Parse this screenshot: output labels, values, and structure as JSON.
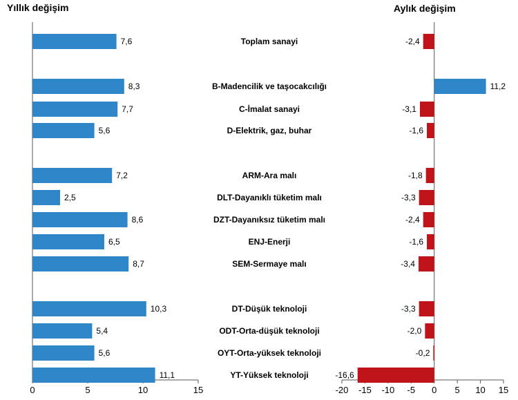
{
  "chart_data": [
    {
      "type": "bar",
      "orientation": "horizontal",
      "title": "Yıllık değişim",
      "categories": [
        "Toplam sanayi",
        "B-Madencilik ve taşocakcılığı",
        "C-İmalat sanayi",
        "D-Elektrik, gaz, buhar",
        "ARM-Ara malı",
        "DLT-Dayanıklı tüketim malı",
        "DZT-Dayanıksız tüketim malı",
        "ENJ-Enerji",
        "SEM-Sermaye malı",
        "DT-Düşük teknoloji",
        "ODT-Orta-düşük teknoloji",
        "OYT-Orta-yüksek teknoloji",
        "YT-Yüksek teknoloji"
      ],
      "values": [
        7.6,
        8.3,
        7.7,
        5.6,
        7.2,
        2.5,
        8.6,
        6.5,
        8.7,
        10.3,
        5.4,
        5.6,
        11.1
      ],
      "value_labels": [
        "7,6",
        "8,3",
        "7,7",
        "5,6",
        "7,2",
        "2,5",
        "8,6",
        "6,5",
        "8,7",
        "10,3",
        "5,4",
        "5,6",
        "11,1"
      ],
      "xlim": [
        0,
        15
      ],
      "ticks": [
        0,
        5,
        10,
        15
      ],
      "tick_labels": [
        "0",
        "5",
        "10",
        "15"
      ],
      "color": "#2e86c8",
      "grid": false
    },
    {
      "type": "bar",
      "orientation": "horizontal",
      "title": "Aylık değişim",
      "categories": [
        "Toplam sanayi",
        "B-Madencilik ve taşocakcılığı",
        "C-İmalat sanayi",
        "D-Elektrik, gaz, buhar",
        "ARM-Ara malı",
        "DLT-Dayanıklı tüketim malı",
        "DZT-Dayanıksız tüketim malı",
        "ENJ-Enerji",
        "SEM-Sermaye malı",
        "DT-Düşük teknoloji",
        "ODT-Orta-düşük teknoloji",
        "OYT-Orta-yüksek teknoloji",
        "YT-Yüksek teknoloji"
      ],
      "values": [
        -2.4,
        11.2,
        -3.1,
        -1.6,
        -1.8,
        -3.3,
        -2.4,
        -1.6,
        -3.4,
        -3.3,
        -2.0,
        -0.2,
        -16.6
      ],
      "value_labels": [
        "-2,4",
        "11,2",
        "-3,1",
        "-1,6",
        "-1,8",
        "-3,3",
        "-2,4",
        "-1,6",
        "-3,4",
        "-3,3",
        "-2,0",
        "-0,2",
        "-16,6"
      ],
      "xlim": [
        -20,
        15
      ],
      "ticks": [
        -20,
        -15,
        -10,
        -5,
        0,
        5,
        10,
        15
      ],
      "tick_labels": [
        "-20",
        "-15",
        "-10",
        "-5",
        "0",
        "5",
        "10",
        "15"
      ],
      "positive_color": "#2e86c8",
      "negative_color": "#c0141a",
      "grid": false
    }
  ]
}
